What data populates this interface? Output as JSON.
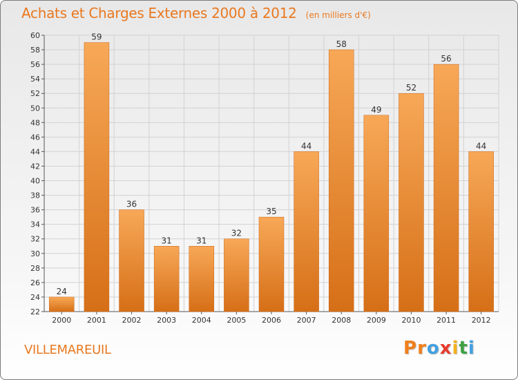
{
  "title": "Achats et Charges Externes 2000 à 2012",
  "subtitle": "(en milliers d'€)",
  "commune": "VILLEMAREUIL",
  "logo": {
    "letters": [
      "P",
      "r",
      "o",
      "x",
      "i",
      "t",
      "i"
    ],
    "colors": [
      "#f07f1a",
      "#f07f1a",
      "#43a0e0",
      "#e73b2e",
      "#f4b21b",
      "#3ea043",
      "#43a0e0"
    ]
  },
  "colors": {
    "title": "#e9781f",
    "bar_light": "#f7a857",
    "bar_dark": "#d66f17",
    "grid": "#d2d2d2",
    "axis_text": "#333333"
  },
  "chart_data": {
    "type": "bar",
    "categories": [
      "2000",
      "2001",
      "2002",
      "2003",
      "2004",
      "2005",
      "2006",
      "2007",
      "2008",
      "2009",
      "2010",
      "2011",
      "2012"
    ],
    "values": [
      24,
      59,
      36,
      31,
      31,
      32,
      35,
      44,
      58,
      49,
      52,
      56,
      44
    ],
    "ylim": [
      22,
      60
    ],
    "yticks": [
      22,
      24,
      26,
      28,
      30,
      32,
      34,
      36,
      38,
      40,
      42,
      44,
      46,
      48,
      50,
      52,
      54,
      56,
      58,
      60
    ],
    "grid": true,
    "legend": "none"
  }
}
